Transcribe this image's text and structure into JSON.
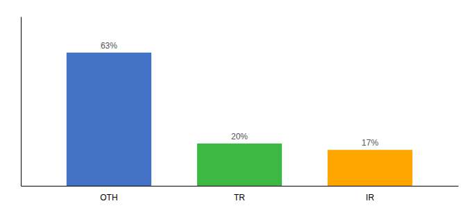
{
  "chart_data": {
    "type": "bar",
    "categories": [
      "OTH",
      "TR",
      "IR"
    ],
    "values": [
      63,
      20,
      17
    ],
    "value_labels": [
      "63%",
      "20%",
      "17%"
    ],
    "data_labels": true,
    "colors": [
      "#4472C4",
      "#3CB843",
      "#FFA500"
    ],
    "ylim": [
      0,
      80
    ],
    "tick_labels": "x",
    "grid": false
  }
}
